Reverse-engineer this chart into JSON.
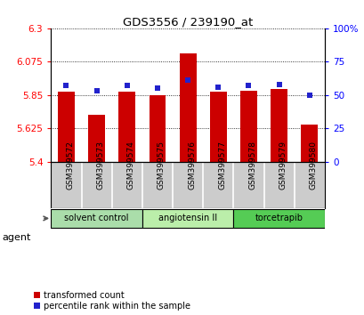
{
  "title": "GDS3556 / 239190_at",
  "samples": [
    "GSM399572",
    "GSM399573",
    "GSM399574",
    "GSM399575",
    "GSM399576",
    "GSM399577",
    "GSM399578",
    "GSM399579",
    "GSM399580"
  ],
  "red_values": [
    5.872,
    5.718,
    5.872,
    5.85,
    6.132,
    5.872,
    5.878,
    5.893,
    5.648
  ],
  "blue_percentiles": [
    57,
    53,
    57,
    55,
    61,
    56,
    57,
    58,
    50
  ],
  "ylim_left": [
    5.4,
    6.3
  ],
  "ylim_right": [
    0,
    100
  ],
  "yticks_left": [
    5.4,
    5.625,
    5.85,
    6.075,
    6.3
  ],
  "yticks_right": [
    0,
    25,
    50,
    75,
    100
  ],
  "ytick_labels_left": [
    "5.4",
    "5.625",
    "5.85",
    "6.075",
    "6.3"
  ],
  "ytick_labels_right": [
    "0",
    "25",
    "50",
    "75",
    "100%"
  ],
  "bar_color": "#cc0000",
  "blue_color": "#2222cc",
  "bar_bottom": 5.4,
  "groups": [
    {
      "label": "solvent control",
      "start": 0,
      "end": 3,
      "color": "#aaddaa"
    },
    {
      "label": "angiotensin II",
      "start": 3,
      "end": 6,
      "color": "#bbeeaa"
    },
    {
      "label": "torcetrapib",
      "start": 6,
      "end": 9,
      "color": "#55cc55"
    }
  ],
  "agent_label": "agent",
  "legend_red": "transformed count",
  "legend_blue": "percentile rank within the sample",
  "bar_width": 0.55,
  "tick_label_area_color": "#cccccc",
  "plot_bg": "#ffffff"
}
